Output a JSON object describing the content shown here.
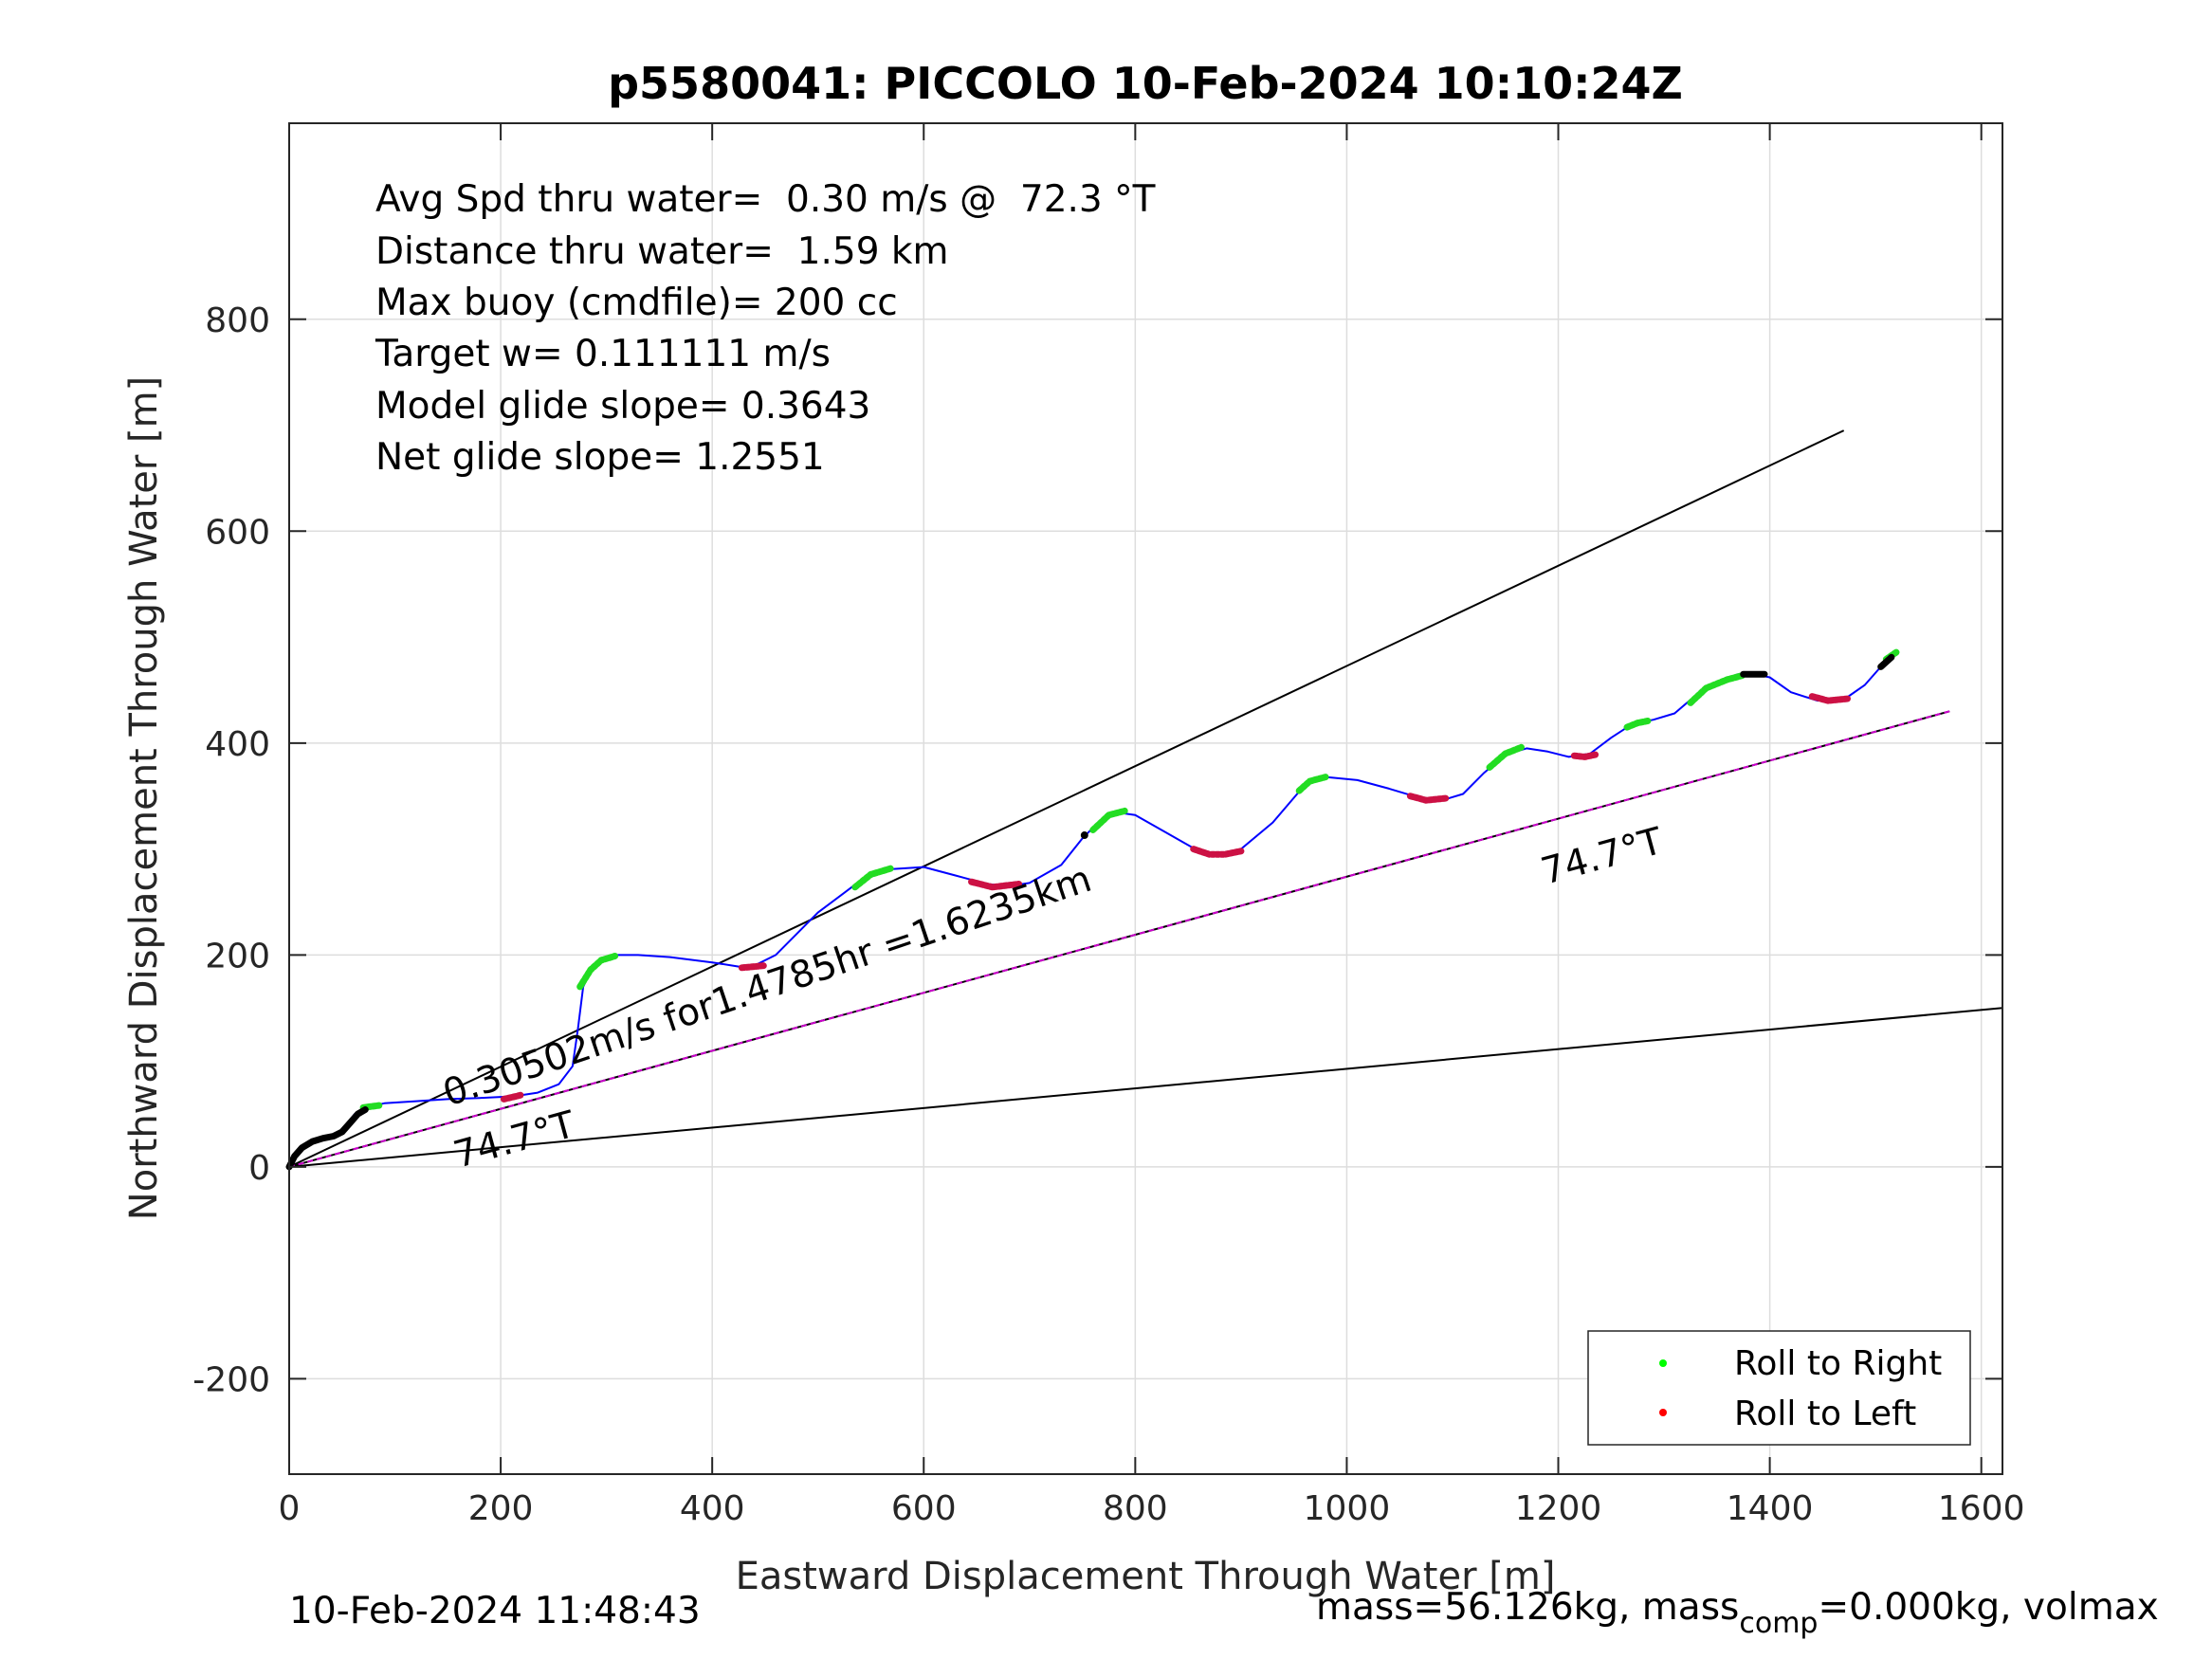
{
  "chart_data": {
    "type": "line",
    "title": "p5580041: PICCOLO 10-Feb-2024 10:10:24Z",
    "xlabel": "Eastward Displacement Through Water [m]",
    "ylabel": "Northward Displacement Through Water [m]",
    "xlim": [
      0,
      1620
    ],
    "ylim": [
      -290,
      985
    ],
    "xticks": [
      0,
      200,
      400,
      600,
      800,
      1000,
      1200,
      1400,
      1600
    ],
    "yticks": [
      -200,
      0,
      200,
      400,
      600,
      800
    ],
    "xtick_labels": [
      "0",
      "200",
      "400",
      "600",
      "800",
      "1000",
      "1200",
      "1400",
      "1600"
    ],
    "ytick_labels": [
      "-200",
      "0",
      "200",
      "400",
      "600",
      "800"
    ],
    "grid": true,
    "legend_position": "bottom-right",
    "annotations": [
      "Avg Spd thru water=  0.30 m/s @  72.3 °T",
      "Distance thru water=  1.59 km",
      "Max buoy (cmdfile)= 200 cc",
      "Target w= 0.111111 m/s",
      "Model glide slope= 0.3643",
      "Net glide slope= 1.2551"
    ],
    "line_labels": {
      "speed": "0.30502m/s for1.4785hr =1.6235km",
      "heading_lower": "74.7°T",
      "heading_upper": "74.7°T"
    },
    "reference_lines": [
      {
        "from": [
          0,
          0
        ],
        "to": [
          1470,
          695
        ]
      },
      {
        "from": [
          0,
          0
        ],
        "to": [
          1570,
          430
        ]
      },
      {
        "from": [
          0,
          0
        ],
        "to": [
          1620,
          150
        ]
      }
    ],
    "track": {
      "x": [
        0,
        8,
        20,
        35,
        50,
        62,
        75,
        90,
        120,
        150,
        180,
        200,
        215,
        235,
        255,
        268,
        273,
        278,
        285,
        295,
        310,
        330,
        360,
        400,
        425,
        440,
        460,
        500,
        540,
        570,
        600,
        630,
        660,
        680,
        700,
        730,
        750,
        760,
        780,
        800,
        830,
        860,
        880,
        900,
        930,
        960,
        980,
        1010,
        1040,
        1070,
        1090,
        1110,
        1130,
        1150,
        1170,
        1190,
        1210,
        1230,
        1250,
        1270,
        1290,
        1310,
        1330,
        1350,
        1370,
        1385,
        1400,
        1420,
        1445,
        1470,
        1490,
        1505,
        1510,
        1520
      ],
      "y": [
        0,
        15,
        25,
        28,
        35,
        50,
        57,
        60,
        62,
        64,
        65,
        66,
        67,
        70,
        78,
        95,
        130,
        170,
        185,
        195,
        200,
        200,
        198,
        193,
        189,
        190,
        200,
        240,
        270,
        281,
        283,
        275,
        267,
        265,
        268,
        285,
        310,
        320,
        335,
        332,
        315,
        298,
        295,
        300,
        325,
        360,
        368,
        365,
        357,
        348,
        346,
        352,
        372,
        389,
        395,
        392,
        387,
        390,
        405,
        418,
        422,
        428,
        445,
        458,
        465,
        465,
        462,
        448,
        440,
        441,
        455,
        472,
        478,
        485
      ]
    },
    "roll_right_segments": [
      {
        "x": [
          70,
          85
        ],
        "y": [
          56,
          58
        ]
      },
      {
        "x": [
          275,
          285,
          295,
          308
        ],
        "y": [
          170,
          186,
          195,
          199
        ]
      },
      {
        "x": [
          535,
          550,
          570
        ],
        "y": [
          264,
          276,
          282
        ]
      },
      {
        "x": [
          760,
          775,
          790
        ],
        "y": [
          318,
          332,
          336
        ]
      },
      {
        "x": [
          955,
          965,
          980
        ],
        "y": [
          355,
          364,
          368
        ]
      },
      {
        "x": [
          1135,
          1150,
          1165
        ],
        "y": [
          377,
          390,
          396
        ]
      },
      {
        "x": [
          1265,
          1275,
          1285
        ],
        "y": [
          415,
          419,
          421
        ]
      },
      {
        "x": [
          1325,
          1340,
          1360,
          1375
        ],
        "y": [
          438,
          452,
          460,
          464
        ]
      },
      {
        "x": [
          1510,
          1520
        ],
        "y": [
          479,
          486
        ]
      }
    ],
    "roll_left_segments": [
      {
        "x": [
          203,
          212,
          220
        ],
        "y": [
          64,
          66,
          68
        ]
      },
      {
        "x": [
          428,
          440,
          450
        ],
        "y": [
          188,
          189,
          190
        ]
      },
      {
        "x": [
          645,
          665,
          690
        ],
        "y": [
          269,
          264,
          267
        ]
      },
      {
        "x": [
          855,
          870,
          885,
          900
        ],
        "y": [
          300,
          295,
          295,
          298
        ]
      },
      {
        "x": [
          1060,
          1075,
          1095
        ],
        "y": [
          350,
          346,
          348
        ]
      },
      {
        "x": [
          1215,
          1225,
          1235
        ],
        "y": [
          388,
          387,
          389
        ]
      },
      {
        "x": [
          1440,
          1455,
          1475
        ],
        "y": [
          444,
          440,
          442
        ]
      }
    ],
    "black_segments": [
      {
        "x": [
          0,
          5,
          12,
          22,
          32,
          42,
          50,
          58,
          65,
          72
        ],
        "y": [
          0,
          10,
          18,
          24,
          27,
          29,
          33,
          42,
          50,
          54
        ]
      },
      {
        "x": [
          1375,
          1395
        ],
        "y": [
          465,
          465
        ]
      },
      {
        "x": [
          1505,
          1515
        ],
        "y": [
          472,
          481
        ]
      }
    ],
    "black_points": [
      {
        "x": 752,
        "y": 313
      }
    ],
    "legend": [
      {
        "name": "Roll to Right",
        "color": "#00ff00"
      },
      {
        "name": "Roll to Left",
        "color": "#ff0000"
      }
    ],
    "colors": {
      "track": "#0000ff",
      "roll_right": "#22dd22",
      "roll_left": "#cc1144",
      "reference": "#000000",
      "glide": "#cc00cc"
    },
    "footer_left": "10-Feb-2024 11:48:43",
    "footer_right_main": "mass=56.126kg, mass",
    "footer_right_sub": "comp",
    "footer_right_tail": "=0.000kg, volmax"
  }
}
